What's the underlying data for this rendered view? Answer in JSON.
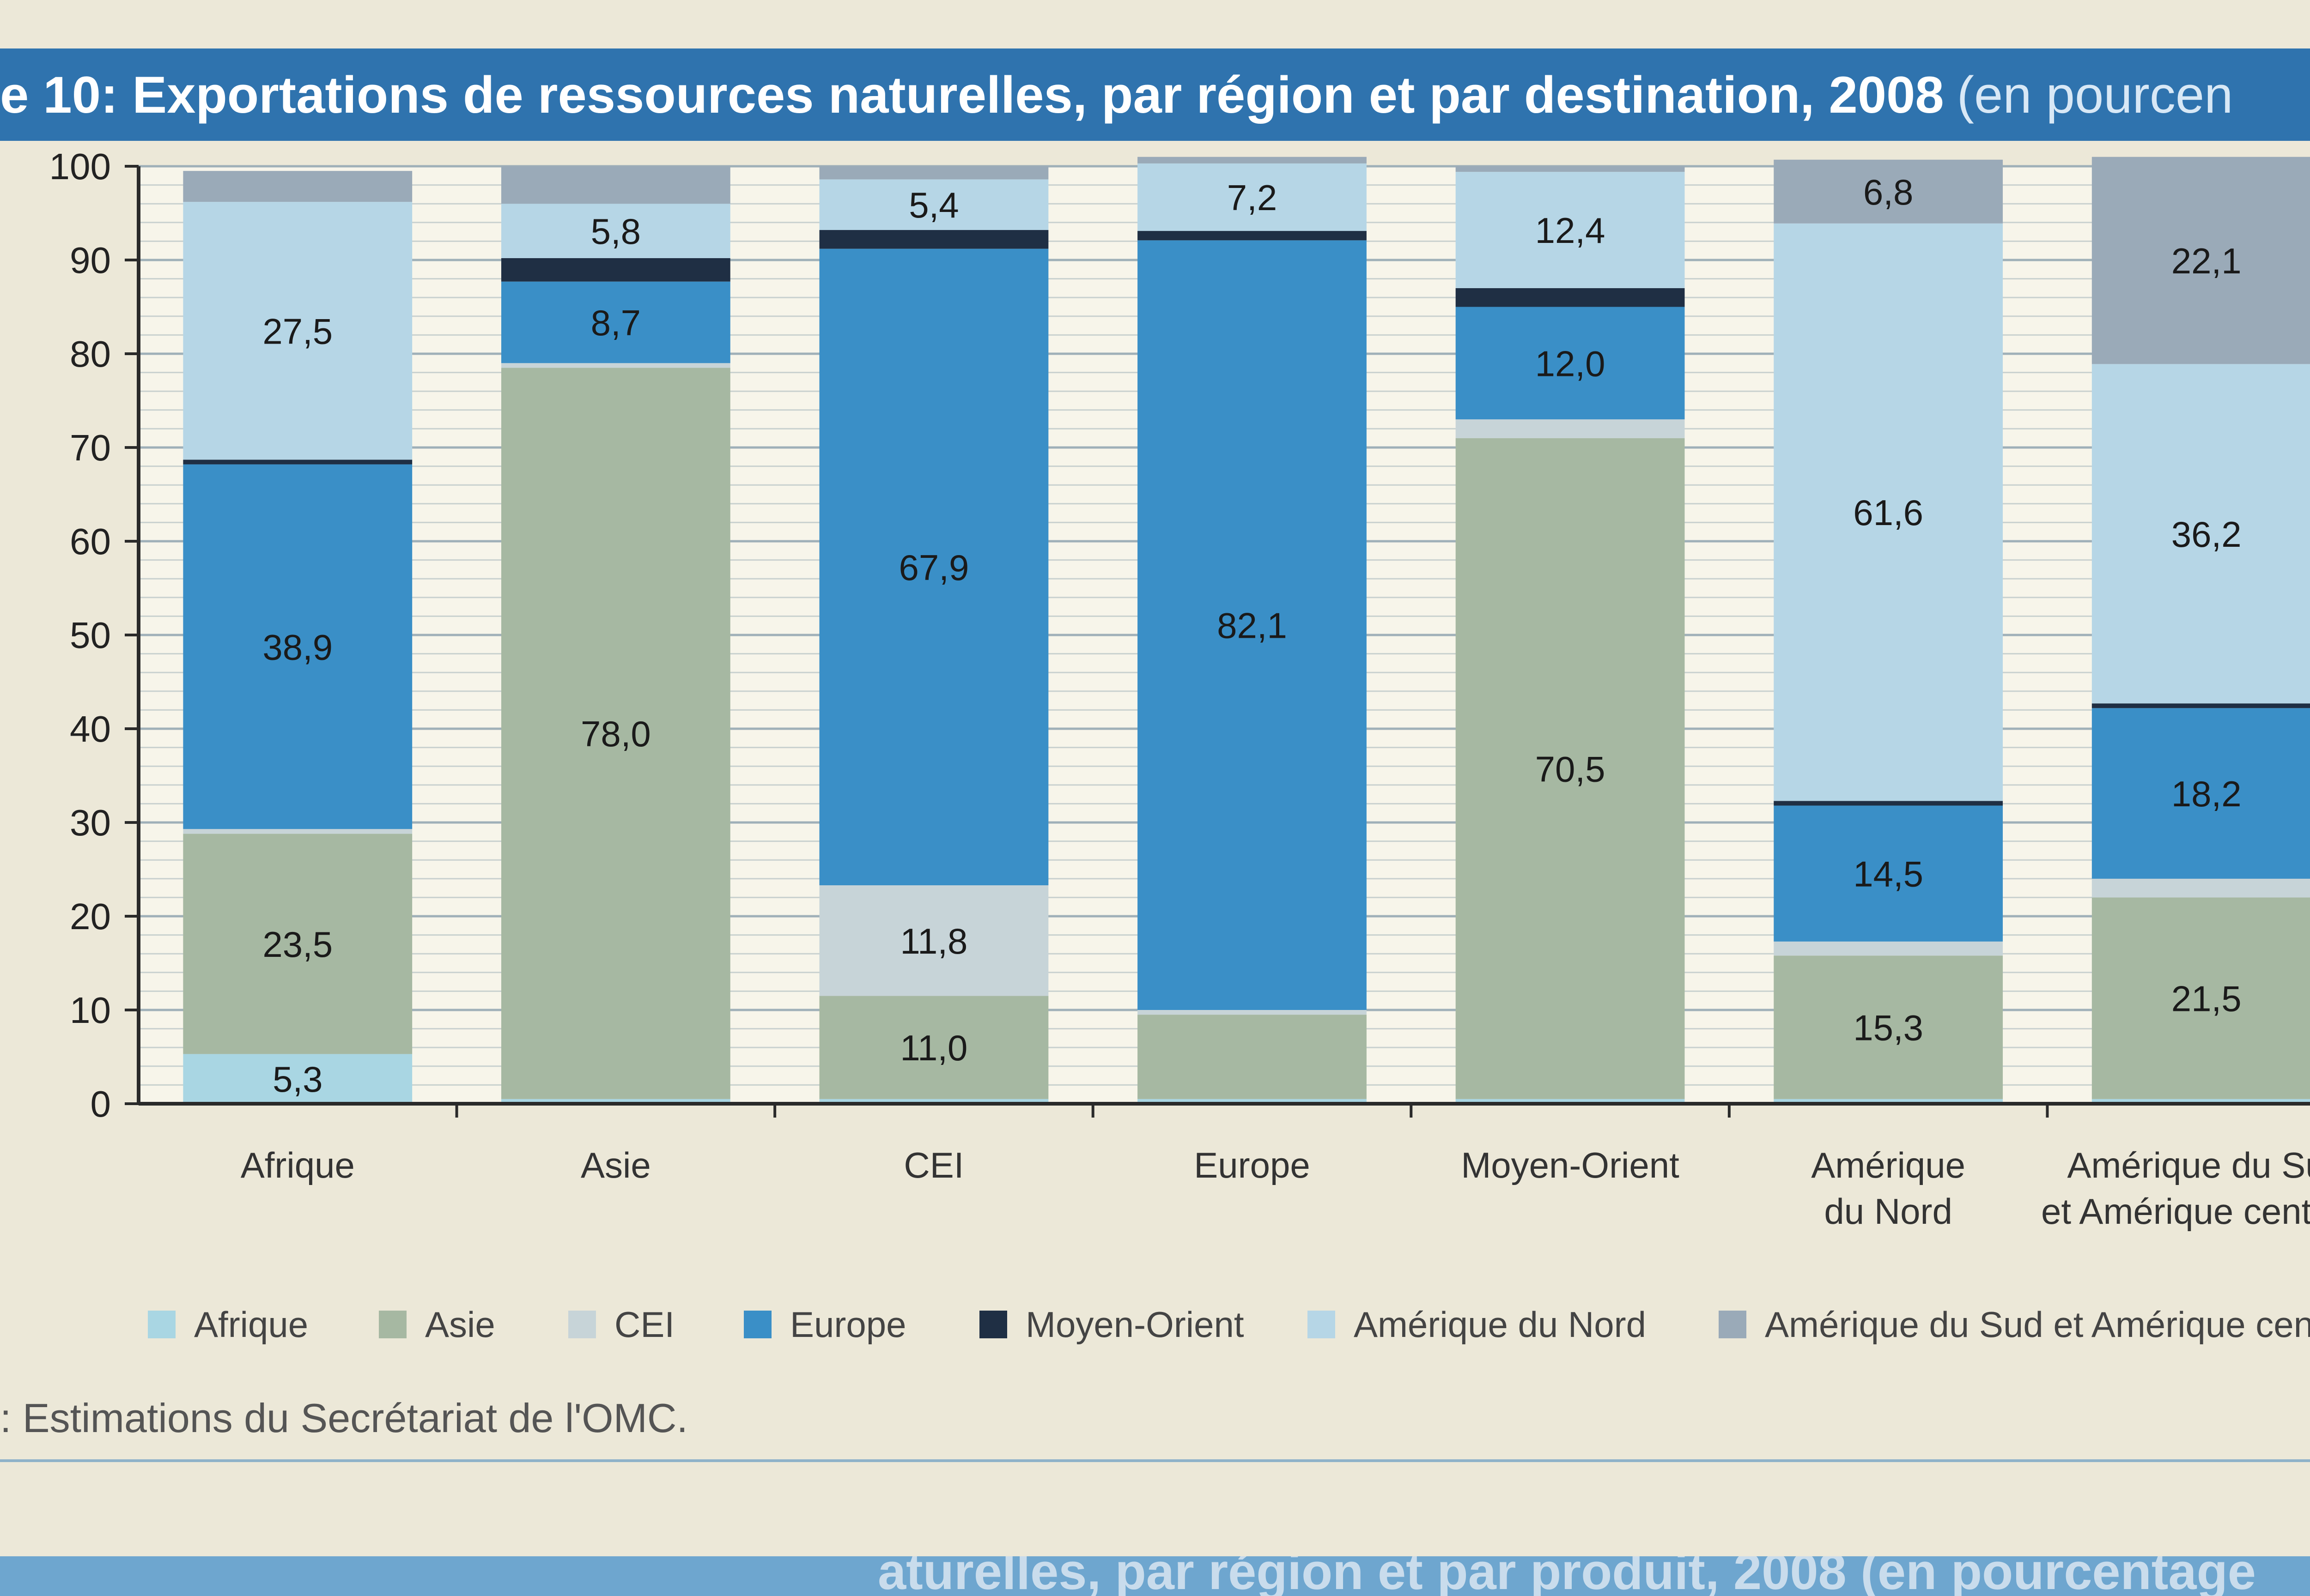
{
  "title": {
    "main": "e 10: Exportations de ressources naturelles, par région et par destination, 2008",
    "sub": "(en pourcen"
  },
  "source": ": Estimations du Secrétariat de l'OMC.",
  "next_figure_fragment": "aturelles, par région et par produit, 2008 (en pourcentage",
  "colors": {
    "Afrique": "#a9d6e3",
    "Asie": "#a6b8a2",
    "CEI": "#c7d4d8",
    "Europe": "#3a8fc7",
    "Moyen-Orient": "#1f2f44",
    "Amérique du Nord": "#b6d6e6",
    "Amérique du Sud et Amérique centrale": "#9aaab8"
  },
  "chart_data": {
    "type": "bar",
    "stacked": true,
    "title": "e 10: Exportations de ressources naturelles, par région et par destination, 2008 (en pourcen",
    "ylim": [
      0,
      100
    ],
    "yticks": [
      0,
      10,
      20,
      30,
      40,
      50,
      60,
      70,
      80,
      90,
      100
    ],
    "grid": true,
    "legend_position": "bottom",
    "categories": [
      [
        "Afrique"
      ],
      [
        "Asie"
      ],
      [
        "CEI"
      ],
      [
        "Europe"
      ],
      [
        "Moyen-Orient"
      ],
      [
        "Amérique",
        "du Nord"
      ],
      [
        "Amérique du Sud",
        "et Amérique centrale"
      ]
    ],
    "series": [
      {
        "name": "Afrique",
        "values": [
          5.3,
          0.5,
          0.5,
          0.5,
          0.5,
          0.5,
          0.5
        ]
      },
      {
        "name": "Asie",
        "values": [
          23.5,
          78.0,
          11.0,
          9.0,
          70.5,
          15.3,
          21.5
        ]
      },
      {
        "name": "CEI",
        "values": [
          0.5,
          0.5,
          11.8,
          0.5,
          2.0,
          1.5,
          2.0
        ]
      },
      {
        "name": "Europe",
        "values": [
          38.9,
          8.7,
          67.9,
          82.1,
          12.0,
          14.5,
          18.2
        ]
      },
      {
        "name": "Moyen-Orient",
        "values": [
          0.5,
          2.5,
          2.0,
          1.0,
          2.0,
          0.5,
          0.5
        ]
      },
      {
        "name": "Amérique du Nord",
        "values": [
          27.5,
          5.8,
          5.4,
          7.2,
          12.4,
          61.6,
          36.2
        ]
      },
      {
        "name": "Amérique du Sud et Amérique centrale",
        "values": [
          3.3,
          4.0,
          1.4,
          0.7,
          0.6,
          6.8,
          22.1
        ]
      }
    ],
    "data_labels": [
      {
        "category": 0,
        "series": "Afrique",
        "text": "5,3"
      },
      {
        "category": 0,
        "series": "Asie",
        "text": "23,5"
      },
      {
        "category": 0,
        "series": "Europe",
        "text": "38,9"
      },
      {
        "category": 0,
        "series": "Amérique du Nord",
        "text": "27,5"
      },
      {
        "category": 1,
        "series": "Asie",
        "text": "78,0"
      },
      {
        "category": 1,
        "series": "Europe",
        "text": "8,7"
      },
      {
        "category": 1,
        "series": "Amérique du Nord",
        "text": "5,8"
      },
      {
        "category": 2,
        "series": "Asie",
        "text": "11,0"
      },
      {
        "category": 2,
        "series": "CEI",
        "text": "11,8"
      },
      {
        "category": 2,
        "series": "Europe",
        "text": "67,9"
      },
      {
        "category": 2,
        "series": "Amérique du Nord",
        "text": "5,4"
      },
      {
        "category": 3,
        "series": "Europe",
        "text": "82,1"
      },
      {
        "category": 3,
        "series": "Amérique du Nord",
        "text": "7,2"
      },
      {
        "category": 4,
        "series": "Asie",
        "text": "70,5"
      },
      {
        "category": 4,
        "series": "Europe",
        "text": "12,0"
      },
      {
        "category": 4,
        "series": "Amérique du Nord",
        "text": "12,4"
      },
      {
        "category": 5,
        "series": "Asie",
        "text": "15,3"
      },
      {
        "category": 5,
        "series": "Europe",
        "text": "14,5"
      },
      {
        "category": 5,
        "series": "Amérique du Nord",
        "text": "61,6"
      },
      {
        "category": 5,
        "series": "Amérique du Sud et Amérique centrale",
        "text": "6,8"
      },
      {
        "category": 6,
        "series": "Asie",
        "text": "21,5"
      },
      {
        "category": 6,
        "series": "Europe",
        "text": "18,2"
      },
      {
        "category": 6,
        "series": "Amérique du Nord",
        "text": "36,2"
      },
      {
        "category": 6,
        "series": "Amérique du Sud et Amérique centrale",
        "text": "22,1"
      }
    ]
  }
}
